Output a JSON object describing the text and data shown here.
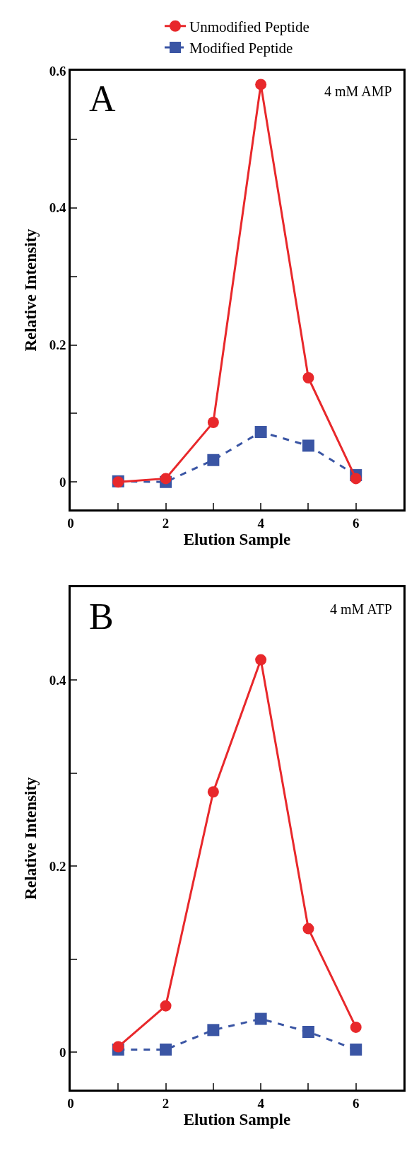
{
  "chart_data": [
    {
      "type": "line",
      "xlabel": "Elution Sample",
      "ylabel": "Relative Intensity",
      "annotations": [
        "A",
        "4 mM AMP"
      ],
      "x": [
        1,
        2,
        3,
        4,
        5,
        6
      ],
      "series": [
        {
          "name": "Unmodified Peptide",
          "color": "#e8282b",
          "marker": "circle",
          "line_style": "solid",
          "values": [
            0,
            0.005,
            0.087,
            0.58,
            0.152,
            0.005
          ]
        },
        {
          "name": "Modified Peptide",
          "color": "#3a55a4",
          "marker": "square",
          "line_style": "dashed",
          "values": [
            0.001,
            0,
            0.032,
            0.073,
            0.053,
            0.01
          ]
        }
      ],
      "xlim": [
        0,
        7
      ],
      "xticks": [
        0,
        {
          "value": 1,
          "label": null
        },
        2,
        {
          "value": 3,
          "label": null
        },
        4,
        {
          "value": 5,
          "label": null
        },
        6
      ],
      "ylim": [
        -0.04,
        0.6
      ],
      "yticks": [
        0,
        {
          "value": 0.1,
          "label": null
        },
        0.2,
        {
          "value": 0.3,
          "label": null
        },
        0.4,
        {
          "value": 0.5,
          "label": null
        },
        0.6
      ],
      "grid": false,
      "legend": "top"
    },
    {
      "type": "line",
      "xlabel": "Elution Sample",
      "ylabel": "Relative Intensity",
      "annotations": [
        "B",
        "4 mM ATP"
      ],
      "x": [
        1,
        2,
        3,
        4,
        5,
        6
      ],
      "series": [
        {
          "color": "#e8282b",
          "marker": "circle",
          "line_style": "solid",
          "values": [
            0.006,
            0.05,
            0.28,
            0.422,
            0.133,
            0.027
          ]
        },
        {
          "color": "#3a55a4",
          "marker": "square",
          "line_style": "dashed",
          "values": [
            0.003,
            0.003,
            0.024,
            0.036,
            0.022,
            0.003
          ]
        }
      ],
      "xlim": [
        0,
        7
      ],
      "xticks": [
        0,
        {
          "value": 1,
          "label": null
        },
        2,
        {
          "value": 3,
          "label": null
        },
        4,
        {
          "value": 5,
          "label": null
        },
        6
      ],
      "ylim": [
        -0.04,
        0.5
      ],
      "yticks": [
        0,
        {
          "value": 0.1,
          "label": null
        },
        0.2,
        {
          "value": 0.3,
          "label": null
        },
        0.4
      ],
      "grid": false,
      "legend": false
    }
  ]
}
